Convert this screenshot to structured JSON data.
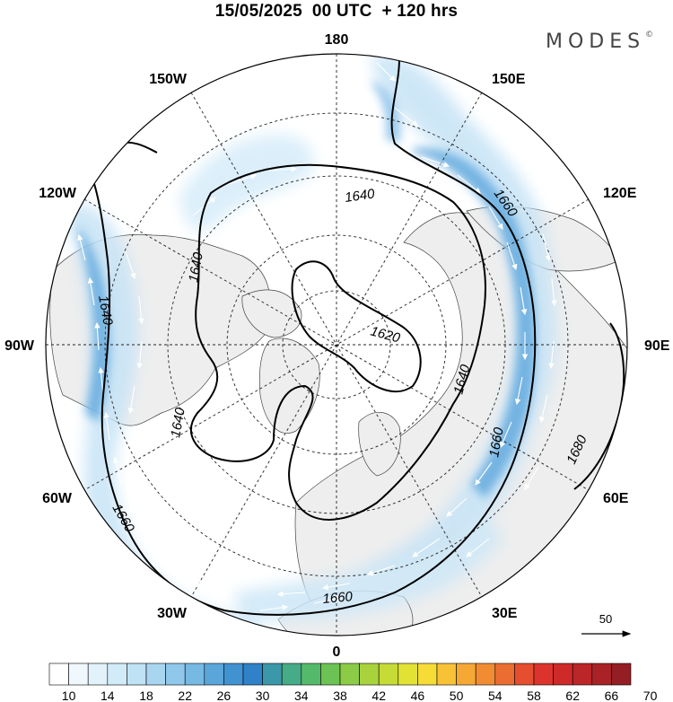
{
  "header": {
    "title": "15/05/2025  00 UTC  + 120 hrs",
    "brand": "MODES",
    "brand_mark": "©"
  },
  "map": {
    "projection": "north-polar-stereographic",
    "longitude_labels": {
      "top": "180",
      "upper_left": "150W",
      "upper_right": "150E",
      "left_upper": "120W",
      "right_upper": "120E",
      "left": "90W",
      "right": "90E",
      "left_lower": "60W",
      "right_lower": "60E",
      "lower_left": "30W",
      "lower_right": "30E",
      "bottom": "0"
    },
    "contour_labels": [
      "1640",
      "1660",
      "1620",
      "1640",
      "1640",
      "1660",
      "1640",
      "1640",
      "1660",
      "1680",
      "1660"
    ],
    "reference_vector": {
      "value": "50"
    },
    "colors": {
      "land": "#eeeeee",
      "ocean": "#ffffff",
      "coast": "#444444"
    }
  },
  "colorbar": {
    "tick_labels": [
      "10",
      "14",
      "18",
      "22",
      "26",
      "30",
      "34",
      "38",
      "42",
      "46",
      "50",
      "54",
      "58",
      "62",
      "66",
      "70"
    ],
    "colors": [
      "#ffffff",
      "#f0f8fd",
      "#e2f2fb",
      "#d2ebf8",
      "#bfe2f5",
      "#a8d6f0",
      "#8fc8ea",
      "#76b9e3",
      "#5aa6db",
      "#4192d1",
      "#2f82c7",
      "#3b98a8",
      "#46ab87",
      "#55b96b",
      "#6cc253",
      "#8bcb46",
      "#a9d33c",
      "#c7db36",
      "#e2e234",
      "#f5dc36",
      "#f8c237",
      "#f6a835",
      "#f28c33",
      "#ec6d31",
      "#e54e2f",
      "#dc342c",
      "#ce2a2a",
      "#bb2628",
      "#a82226",
      "#931e24"
    ]
  }
}
